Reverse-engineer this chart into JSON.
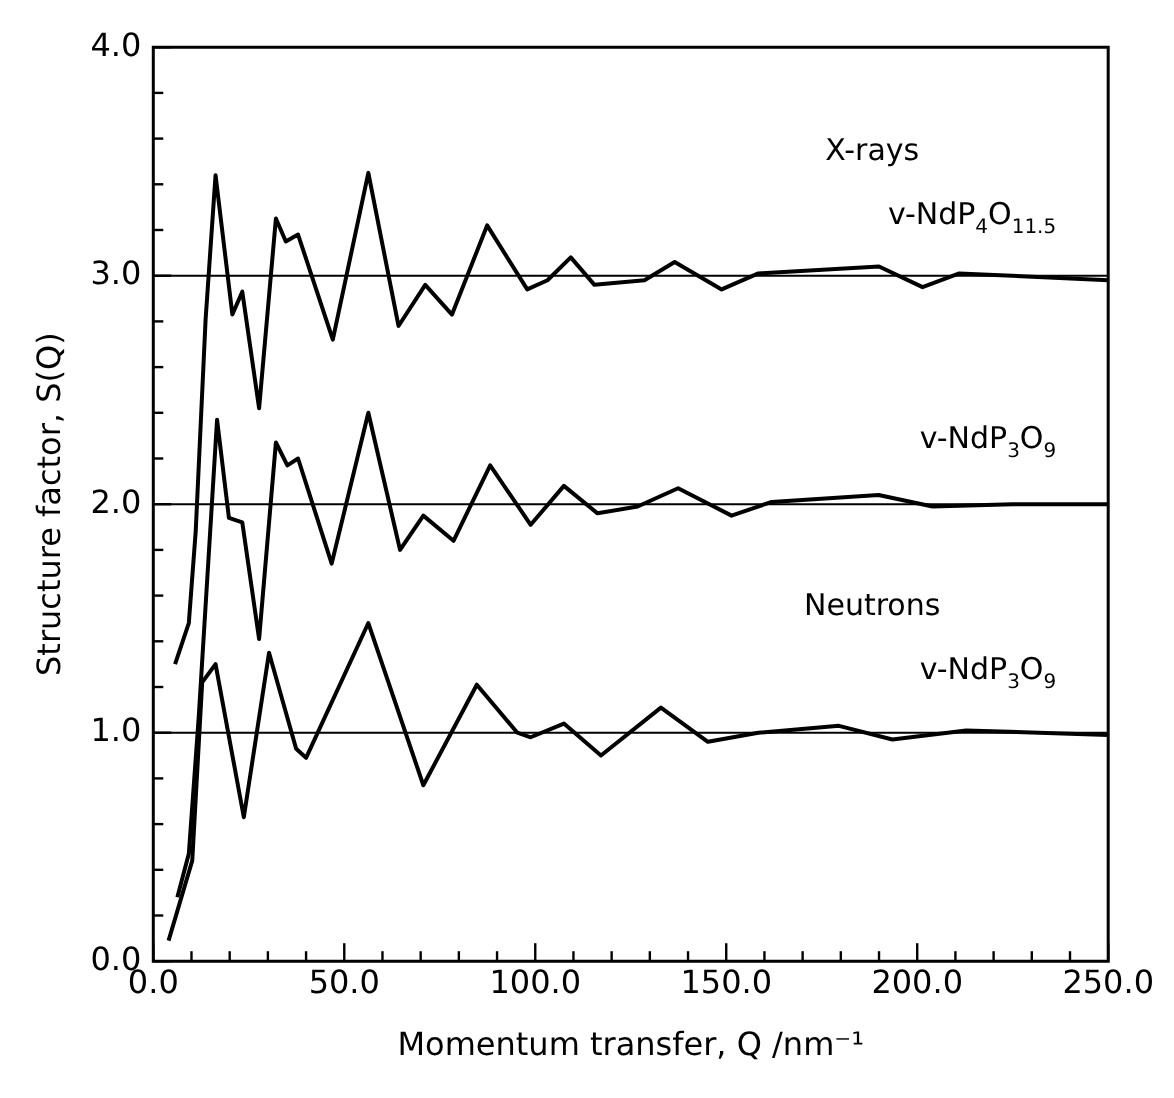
{
  "chart_data": {
    "type": "line",
    "xlabel": "Momentum transfer, Q /nm⁻¹",
    "ylabel": "Structure factor, S(Q)",
    "xlim": [
      0,
      250
    ],
    "xticks": [
      {
        "value": 0,
        "label": "0.0"
      },
      {
        "value": 10,
        "label": null
      },
      {
        "value": 20,
        "label": null
      },
      {
        "value": 30,
        "label": null
      },
      {
        "value": 40,
        "label": null
      },
      {
        "value": 50,
        "label": "50.0"
      },
      {
        "value": 60,
        "label": null
      },
      {
        "value": 70,
        "label": null
      },
      {
        "value": 80,
        "label": null
      },
      {
        "value": 90,
        "label": null
      },
      {
        "value": 100,
        "label": "100.0"
      },
      {
        "value": 110,
        "label": null
      },
      {
        "value": 120,
        "label": null
      },
      {
        "value": 130,
        "label": null
      },
      {
        "value": 140,
        "label": null
      },
      {
        "value": 150,
        "label": "150.0"
      },
      {
        "value": 160,
        "label": null
      },
      {
        "value": 170,
        "label": null
      },
      {
        "value": 180,
        "label": null
      },
      {
        "value": 190,
        "label": null
      },
      {
        "value": 200,
        "label": "200.0"
      },
      {
        "value": 210,
        "label": null
      },
      {
        "value": 220,
        "label": null
      },
      {
        "value": 230,
        "label": null
      },
      {
        "value": 240,
        "label": null
      },
      {
        "value": 250,
        "label": "250.0"
      }
    ],
    "ylim": [
      0,
      4
    ],
    "yticks": [
      {
        "value": 0,
        "label": "0.0"
      },
      {
        "value": 0.2,
        "label": null
      },
      {
        "value": 0.4,
        "label": null
      },
      {
        "value": 0.6,
        "label": null
      },
      {
        "value": 0.8,
        "label": null
      },
      {
        "value": 1,
        "label": "1.0"
      },
      {
        "value": 1.2,
        "label": null
      },
      {
        "value": 1.4,
        "label": null
      },
      {
        "value": 1.6,
        "label": null
      },
      {
        "value": 1.8,
        "label": null
      },
      {
        "value": 2,
        "label": "2.0"
      },
      {
        "value": 2.2,
        "label": null
      },
      {
        "value": 2.4,
        "label": null
      },
      {
        "value": 2.6,
        "label": null
      },
      {
        "value": 2.8,
        "label": null
      },
      {
        "value": 3,
        "label": "3.0"
      },
      {
        "value": 3.2,
        "label": null
      },
      {
        "value": 3.4,
        "label": null
      },
      {
        "value": 3.6,
        "label": null
      },
      {
        "value": 3.8,
        "label": null
      },
      {
        "value": 4,
        "label": "4.0"
      }
    ],
    "grid": false,
    "legend": false,
    "marker": "none",
    "line_style": "solid",
    "ref_lines": [
      {
        "axis": "y",
        "value": 1,
        "color": "#000000"
      },
      {
        "axis": "y",
        "value": 2,
        "color": "#000000"
      },
      {
        "axis": "y",
        "value": 3,
        "color": "#000000"
      }
    ],
    "annotations": [
      "X-rays",
      "Neutrons"
    ],
    "series": [
      {
        "name": "v-NdP$_{4}$O$_{11.5}$",
        "color": "#000000",
        "x": [
          5.7,
          9.3,
          11.1,
          13.7,
          16.3,
          20.7,
          23.3,
          27.7,
          32.1,
          34.7,
          37.9,
          47,
          56.3,
          64.2,
          71.2,
          78.2,
          87.4,
          97.9,
          103.2,
          109.3,
          115.5,
          128.6,
          136.5,
          148.8,
          158.4,
          190,
          201.4,
          211,
          250
        ],
        "values": [
          1.3,
          1.48,
          1.88,
          2.81,
          3.44,
          2.83,
          2.93,
          2.42,
          3.25,
          3.15,
          3.18,
          2.72,
          3.45,
          2.78,
          2.96,
          2.83,
          3.22,
          2.94,
          2.98,
          3.08,
          2.96,
          2.98,
          3.06,
          2.94,
          3.01,
          3.04,
          2.95,
          3.01,
          2.98
        ]
      },
      {
        "name": "v-NdP$_{3}$O$_{9}$",
        "color": "#000000",
        "x": [
          6.3,
          9.3,
          11.9,
          16.7,
          19.8,
          23.3,
          27.7,
          32.1,
          35.1,
          37.9,
          46.7,
          56.3,
          64.6,
          70.7,
          78.6,
          88.2,
          98.8,
          107.5,
          116.3,
          126.8,
          137.4,
          151.4,
          161.9,
          189.9,
          204,
          225,
          250
        ],
        "values": [
          0.28,
          0.47,
          1.07,
          2.37,
          1.94,
          1.92,
          1.41,
          2.27,
          2.17,
          2.2,
          1.74,
          2.4,
          1.8,
          1.95,
          1.84,
          2.17,
          1.91,
          2.08,
          1.96,
          1.99,
          2.07,
          1.95,
          2.01,
          2.04,
          1.99,
          2,
          2
        ]
      },
      {
        "name": "v-NdP$_{3}$O$_{9}$",
        "color": "#000000",
        "x": [
          4,
          10.2,
          12.8,
          16.3,
          23.7,
          30.3,
          37.4,
          40,
          56.3,
          70.7,
          84.7,
          95.3,
          98.8,
          107.5,
          117.2,
          132.9,
          145.2,
          158.4,
          179.5,
          193.5,
          212.8,
          250
        ],
        "values": [
          0.09,
          0.44,
          1.22,
          1.3,
          0.63,
          1.35,
          0.93,
          0.89,
          1.48,
          0.77,
          1.21,
          1,
          0.98,
          1.04,
          0.9,
          1.11,
          0.96,
          1,
          1.03,
          0.97,
          1.01,
          0.99
        ]
      }
    ]
  }
}
